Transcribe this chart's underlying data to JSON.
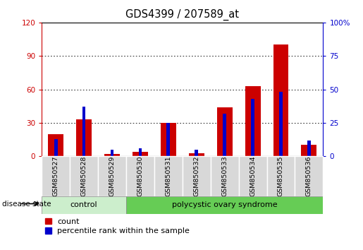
{
  "title": "GDS4399 / 207589_at",
  "samples": [
    "GSM850527",
    "GSM850528",
    "GSM850529",
    "GSM850530",
    "GSM850531",
    "GSM850532",
    "GSM850533",
    "GSM850534",
    "GSM850535",
    "GSM850536"
  ],
  "counts": [
    20,
    33,
    2,
    4,
    30,
    3,
    44,
    63,
    100,
    10
  ],
  "percentiles": [
    13,
    37,
    5,
    6,
    25,
    5,
    32,
    43,
    48,
    12
  ],
  "count_color": "#cc0000",
  "percentile_color": "#0000cc",
  "ylim_left": [
    0,
    120
  ],
  "ylim_right": [
    0,
    100
  ],
  "yticks_left": [
    0,
    30,
    60,
    90,
    120
  ],
  "yticks_right": [
    0,
    25,
    50,
    75,
    100
  ],
  "ytick_labels_right": [
    "0",
    "25",
    "50",
    "75",
    "100%"
  ],
  "control_count": 3,
  "control_label": "control",
  "pcos_label": "polycystic ovary syndrome",
  "control_color": "#cceecc",
  "pcos_color": "#66cc55",
  "legend_count": "count",
  "legend_percentile": "percentile rank within the sample",
  "disease_state_label": "disease state",
  "title_fontsize": 10.5,
  "tick_fontsize": 7.5,
  "label_fontsize": 8
}
